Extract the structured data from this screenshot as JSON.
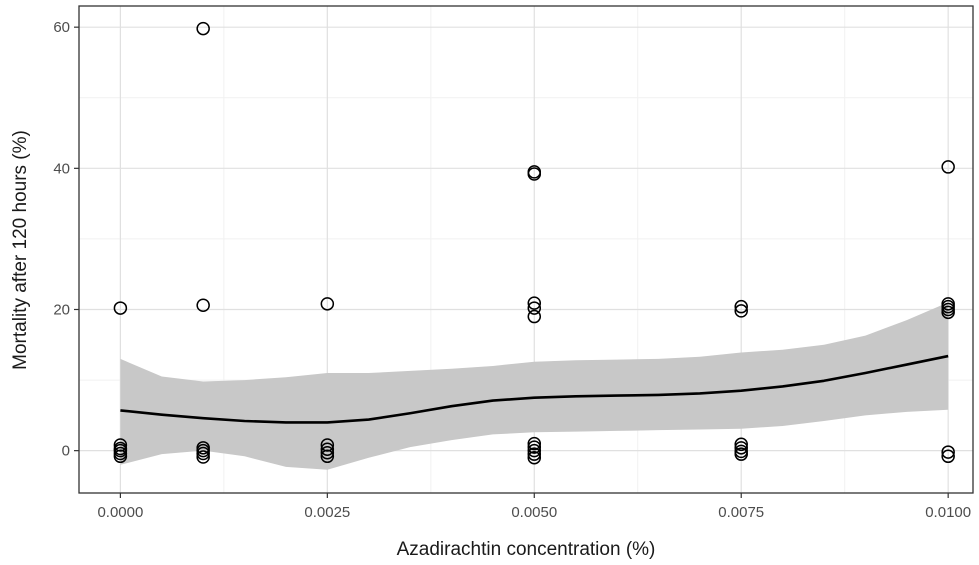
{
  "chart_data": {
    "type": "scatter",
    "title": "",
    "xlabel": "Azadirachtin concentration (%)",
    "ylabel": "Mortality after 120 hours (%)",
    "xlim": [
      -0.0005,
      0.0103
    ],
    "ylim": [
      -6,
      63
    ],
    "x_ticks": [
      0.0,
      0.0025,
      0.005,
      0.0075,
      0.01
    ],
    "x_tick_labels": [
      "0.0000",
      "0.0025",
      "0.0050",
      "0.0075",
      "0.0100"
    ],
    "y_ticks": [
      0,
      20,
      40,
      60
    ],
    "y_tick_labels": [
      "0",
      "20",
      "40",
      "60"
    ],
    "grid": true,
    "theme": "black-and-white",
    "points": [
      {
        "x": 0.0,
        "y": 20.2
      },
      {
        "x": 0.0,
        "y": 0.8
      },
      {
        "x": 0.0,
        "y": 0.3
      },
      {
        "x": 0.0,
        "y": 0.0
      },
      {
        "x": 0.0,
        "y": -0.4
      },
      {
        "x": 0.0,
        "y": -0.8
      },
      {
        "x": 0.001,
        "y": 59.8
      },
      {
        "x": 0.001,
        "y": 20.6
      },
      {
        "x": 0.001,
        "y": 0.4
      },
      {
        "x": 0.001,
        "y": 0.0
      },
      {
        "x": 0.001,
        "y": -0.4
      },
      {
        "x": 0.001,
        "y": -0.9
      },
      {
        "x": 0.0025,
        "y": 20.8
      },
      {
        "x": 0.0025,
        "y": 0.8
      },
      {
        "x": 0.0025,
        "y": 0.2
      },
      {
        "x": 0.0025,
        "y": -0.3
      },
      {
        "x": 0.0025,
        "y": -0.8
      },
      {
        "x": 0.005,
        "y": 39.5
      },
      {
        "x": 0.005,
        "y": 39.2
      },
      {
        "x": 0.005,
        "y": 20.9
      },
      {
        "x": 0.005,
        "y": 20.2
      },
      {
        "x": 0.005,
        "y": 19.0
      },
      {
        "x": 0.005,
        "y": 1.0
      },
      {
        "x": 0.005,
        "y": 0.5
      },
      {
        "x": 0.005,
        "y": 0.0
      },
      {
        "x": 0.005,
        "y": -0.5
      },
      {
        "x": 0.005,
        "y": -1.0
      },
      {
        "x": 0.0075,
        "y": 20.4
      },
      {
        "x": 0.0075,
        "y": 19.8
      },
      {
        "x": 0.0075,
        "y": 0.9
      },
      {
        "x": 0.0075,
        "y": 0.4
      },
      {
        "x": 0.0075,
        "y": -0.1
      },
      {
        "x": 0.0075,
        "y": -0.5
      },
      {
        "x": 0.01,
        "y": 40.2
      },
      {
        "x": 0.01,
        "y": 20.8
      },
      {
        "x": 0.01,
        "y": 20.4
      },
      {
        "x": 0.01,
        "y": 20.0
      },
      {
        "x": 0.01,
        "y": 19.6
      },
      {
        "x": 0.01,
        "y": -0.2
      },
      {
        "x": 0.01,
        "y": -0.8
      }
    ],
    "smooth": {
      "x": [
        0.0,
        0.0005,
        0.001,
        0.0015,
        0.002,
        0.0025,
        0.003,
        0.0035,
        0.004,
        0.0045,
        0.005,
        0.0055,
        0.006,
        0.0065,
        0.007,
        0.0075,
        0.008,
        0.0085,
        0.009,
        0.0095,
        0.01
      ],
      "y": [
        5.7,
        5.1,
        4.6,
        4.2,
        4.0,
        4.0,
        4.4,
        5.3,
        6.3,
        7.1,
        7.5,
        7.7,
        7.8,
        7.9,
        8.1,
        8.5,
        9.1,
        9.9,
        11.0,
        12.2,
        13.4
      ],
      "lower": [
        -2.0,
        -0.5,
        0.0,
        -0.8,
        -2.3,
        -2.7,
        -1.0,
        0.5,
        1.5,
        2.3,
        2.6,
        2.7,
        2.8,
        2.9,
        3.0,
        3.1,
        3.5,
        4.2,
        5.0,
        5.5,
        5.8
      ],
      "upper": [
        13.0,
        10.5,
        9.8,
        10.0,
        10.4,
        11.0,
        11.0,
        11.3,
        11.6,
        12.0,
        12.6,
        12.8,
        12.9,
        13.0,
        13.3,
        13.9,
        14.3,
        15.0,
        16.3,
        18.5,
        21.0
      ]
    },
    "colors": {
      "points": "#000000",
      "line": "#000000",
      "ribbon": "#c8c8c8",
      "grid_major": "#e0e0e0",
      "grid_minor": "#f1f1f1",
      "border": "#333333"
    }
  }
}
